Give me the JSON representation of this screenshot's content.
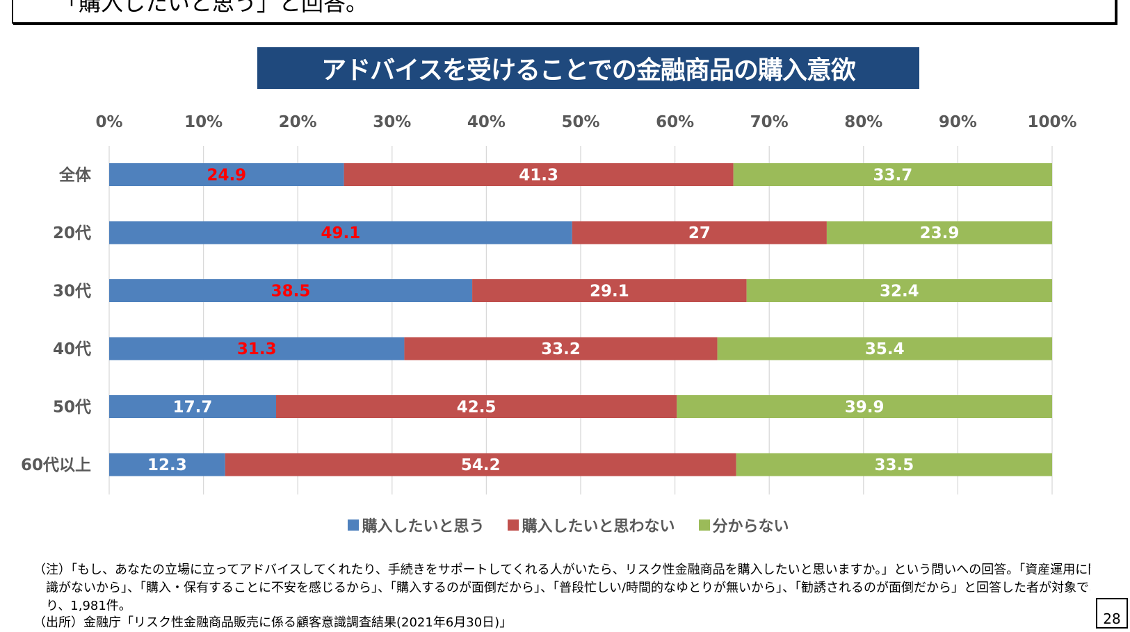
{
  "summary": {
    "text": "「購入したいと思う」と回答。"
  },
  "chart_data": {
    "type": "bar",
    "orientation": "horizontal",
    "stacked": true,
    "title": "アドバイスを受けることでの金融商品の購入意欲",
    "categories": [
      "全体",
      "20代",
      "30代",
      "40代",
      "50代",
      "60代以上"
    ],
    "series": [
      {
        "name": "購入したいと思う",
        "color": "#4f81bd",
        "values": [
          24.9,
          49.1,
          38.5,
          31.3,
          17.7,
          12.3
        ],
        "label_colors": [
          "#ff0000",
          "#ff0000",
          "#ff0000",
          "#ff0000",
          "#ffffff",
          "#ffffff"
        ]
      },
      {
        "name": "購入したいと思わない",
        "color": "#c0504d",
        "values": [
          41.3,
          27,
          29.1,
          33.2,
          42.5,
          54.2
        ],
        "label_colors": [
          "#ffffff",
          "#ffffff",
          "#ffffff",
          "#ffffff",
          "#ffffff",
          "#ffffff"
        ]
      },
      {
        "name": "分からない",
        "color": "#9bbb59",
        "values": [
          33.7,
          23.9,
          32.4,
          35.4,
          39.9,
          33.5
        ],
        "label_colors": [
          "#ffffff",
          "#ffffff",
          "#ffffff",
          "#ffffff",
          "#ffffff",
          "#ffffff"
        ]
      }
    ],
    "xlim": [
      0,
      100
    ],
    "xticks": [
      "0%",
      "10%",
      "20%",
      "30%",
      "40%",
      "50%",
      "60%",
      "70%",
      "80%",
      "90%",
      "100%"
    ],
    "axis_position": "top",
    "grid": true,
    "legend_position": "bottom"
  },
  "note": {
    "line1": "（注）「もし、あなたの立場に立ってアドバイスしてくれたり、手続きをサポートしてくれる人がいたら、リスク性金融商品を購入したいと思いますか。」という問いへの回答。「資産運用に関する知",
    "line2": "識がないから」、「購入・保有することに不安を感じるから」、「購入するのが面倒だから」、「普段忙しい/時間的なゆとりが無いから」、「勧誘されるのが面倒だから」と回答した者が対象であ",
    "line3": "り、1,981件。"
  },
  "source": {
    "text": "（出所）金融庁「リスク性金融商品販売に係る顧客意識調査結果(2021年6月30日)」"
  },
  "page_number": "28",
  "colors": {
    "title_bg": "#1f497d",
    "axis_text": "#595959",
    "grid": "#d9d9d9"
  }
}
